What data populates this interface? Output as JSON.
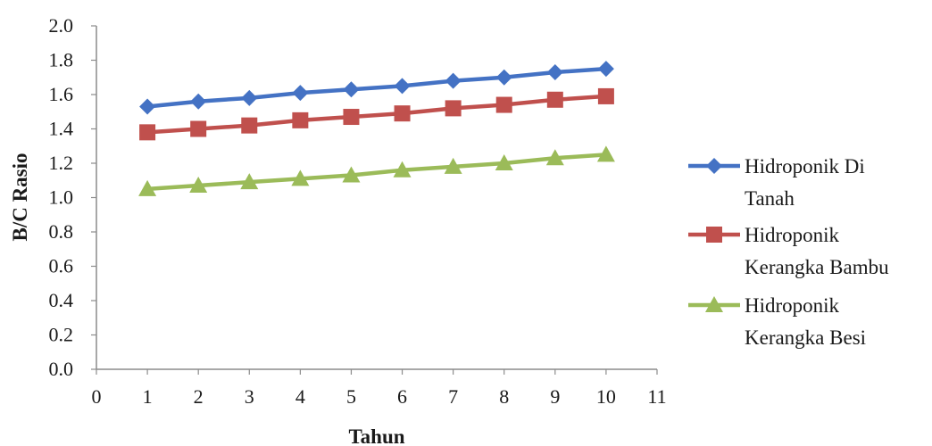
{
  "chart_data": {
    "type": "line",
    "title": "",
    "xlabel": "Tahun",
    "ylabel": "B/C Rasio",
    "xlim": [
      0,
      11
    ],
    "ylim": [
      0.0,
      2.0
    ],
    "x_ticks": [
      "0",
      "1",
      "2",
      "3",
      "4",
      "5",
      "6",
      "7",
      "8",
      "9",
      "10",
      "11"
    ],
    "y_ticks": [
      "0.0",
      "0.2",
      "0.4",
      "0.6",
      "0.8",
      "1.0",
      "1.2",
      "1.4",
      "1.6",
      "1.8",
      "2.0"
    ],
    "grid": false,
    "legend_position": "right",
    "x": [
      1,
      2,
      3,
      4,
      5,
      6,
      7,
      8,
      9,
      10
    ],
    "series": [
      {
        "name_lines": [
          "Hidroponik Di",
          "Tanah"
        ],
        "marker": "diamond",
        "color": "#4472C4",
        "values": [
          1.53,
          1.56,
          1.58,
          1.61,
          1.63,
          1.65,
          1.68,
          1.7,
          1.73,
          1.75
        ]
      },
      {
        "name_lines": [
          "Hidroponik",
          "Kerangka Bambu"
        ],
        "marker": "square",
        "color": "#C0504D",
        "values": [
          1.38,
          1.4,
          1.42,
          1.45,
          1.47,
          1.49,
          1.52,
          1.54,
          1.57,
          1.59
        ]
      },
      {
        "name_lines": [
          "Hidroponik",
          "Kerangka Besi"
        ],
        "marker": "triangle",
        "color": "#9BBB59",
        "values": [
          1.05,
          1.07,
          1.09,
          1.11,
          1.13,
          1.16,
          1.18,
          1.2,
          1.23,
          1.25
        ]
      }
    ]
  }
}
